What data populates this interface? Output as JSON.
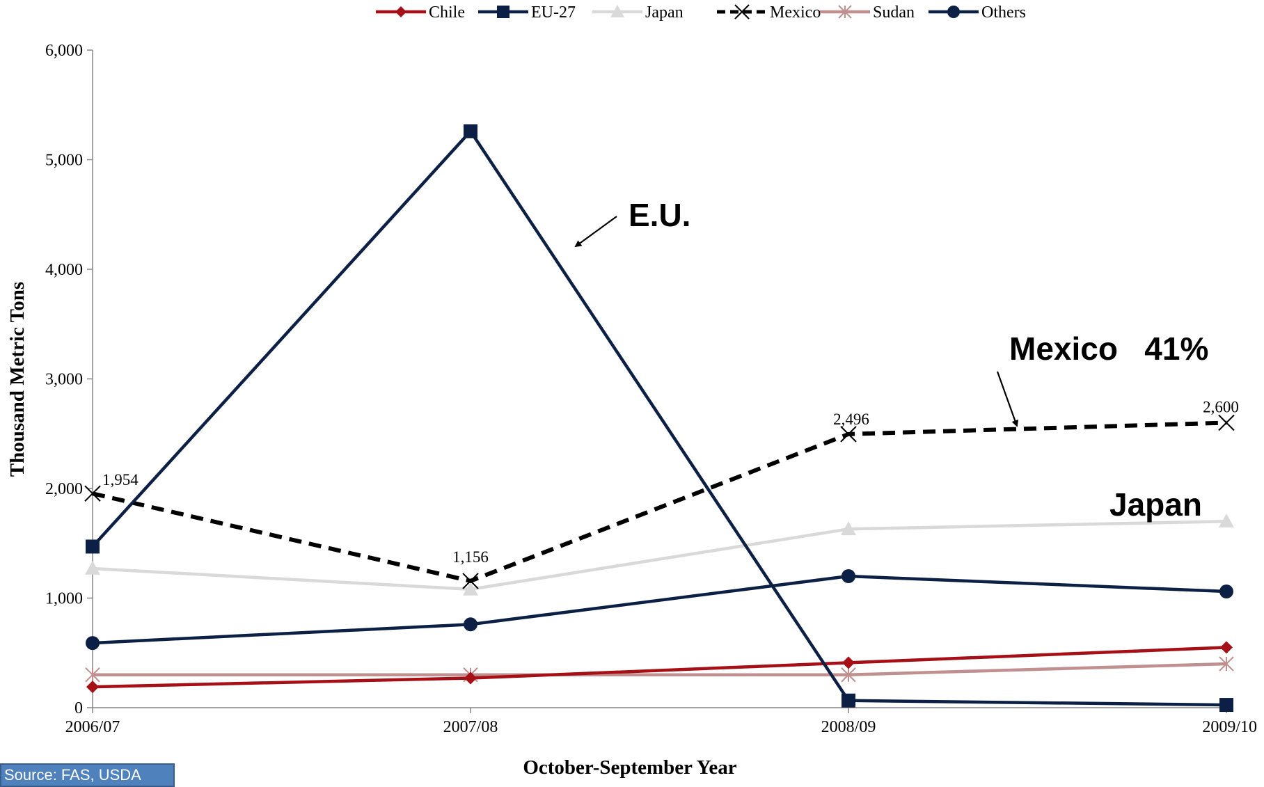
{
  "chart_data": {
    "type": "line",
    "title": "",
    "xlabel": "October-September Year",
    "ylabel": "Thousand Metric Tons",
    "ylim": [
      0,
      6000
    ],
    "yticks": [
      0,
      1000,
      2000,
      3000,
      4000,
      5000,
      6000
    ],
    "ytick_labels": [
      "0",
      "1,000",
      "2,000",
      "3,000",
      "4,000",
      "5,000",
      "6,000"
    ],
    "categories": [
      "2006/07",
      "2007/08",
      "2008/09",
      "2009/10"
    ],
    "grid": false,
    "legend_position": "top",
    "series": [
      {
        "name": "Chile",
        "values": [
          190,
          270,
          410,
          550
        ],
        "color": "#a50f15",
        "marker": "diamond",
        "dash": "solid"
      },
      {
        "name": "EU-27",
        "values": [
          1470,
          5260,
          65,
          25
        ],
        "color": "#0c1f45",
        "marker": "square",
        "dash": "solid"
      },
      {
        "name": "Japan",
        "values": [
          1270,
          1080,
          1630,
          1700
        ],
        "color": "#d9d9d9",
        "marker": "triangle",
        "dash": "solid"
      },
      {
        "name": "Mexico",
        "values": [
          1954,
          1156,
          2496,
          2600
        ],
        "color": "#000000",
        "marker": "x",
        "dash": "dashed",
        "data_labels": [
          "1,954",
          "1,156",
          "2,496",
          "2,600"
        ]
      },
      {
        "name": "Sudan",
        "values": [
          300,
          300,
          300,
          400
        ],
        "color": "#c09090",
        "marker": "asterisk",
        "dash": "solid"
      },
      {
        "name": "Others",
        "values": [
          590,
          760,
          1200,
          1060
        ],
        "color": "#0c1f45",
        "marker": "circle",
        "dash": "solid"
      }
    ],
    "annotations": [
      {
        "text": "E.U.",
        "points_to": {
          "series": "EU-27",
          "segment": "2007/08-2008/09"
        }
      },
      {
        "text": "Mexico   41%",
        "points_to": {
          "series": "Mexico",
          "segment": "2008/09-2009/10"
        }
      },
      {
        "text": "Japan",
        "points_to": {
          "series": "Japan",
          "category": "2009/10"
        }
      }
    ]
  },
  "source_note": "Source: FAS, USDA"
}
